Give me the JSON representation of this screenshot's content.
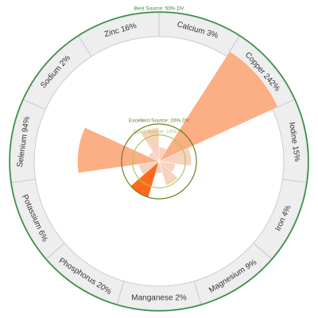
{
  "chart_data": {
    "type": "radial-bar",
    "unit": "% DV",
    "nutrients": [
      {
        "name": "Calcium",
        "label": "Calcium 3%",
        "value": 3
      },
      {
        "name": "Copper",
        "label": "Copper 242%",
        "value": 242
      },
      {
        "name": "Iodine",
        "label": "Iodine 15%",
        "value": 15
      },
      {
        "name": "Iron",
        "label": "Iron 4%",
        "value": 4
      },
      {
        "name": "Magnesium",
        "label": "Magnesium 9%",
        "value": 9
      },
      {
        "name": "Manganese",
        "label": "Manganese 2%",
        "value": 2
      },
      {
        "name": "Phosphorus",
        "label": "Phosphorus 20%",
        "value": 20
      },
      {
        "name": "Potassium",
        "label": "Potassium 6%",
        "value": 6
      },
      {
        "name": "Selenium",
        "label": "Selenium 94%",
        "value": 94
      },
      {
        "name": "Sodium",
        "label": "Sodium 2%",
        "value": 2
      },
      {
        "name": "Zinc",
        "label": "Zinc 16%",
        "value": 16
      }
    ],
    "thresholds": [
      {
        "label": "Good Source: 10% DV",
        "value": 10,
        "color": "#a9c95a"
      },
      {
        "label": "Excellent Source: 20% DV",
        "value": 20,
        "color": "#6b7d1f"
      },
      {
        "label": "Best Source: 50% DV",
        "value": 50,
        "color": "#2e8b3a"
      }
    ],
    "colors": {
      "low": "#f7d2bd",
      "mid": "#fcae85",
      "high": "#ff6a1a",
      "ring_fill": "#eeeeee",
      "ring_stroke": "#cccccc"
    }
  }
}
